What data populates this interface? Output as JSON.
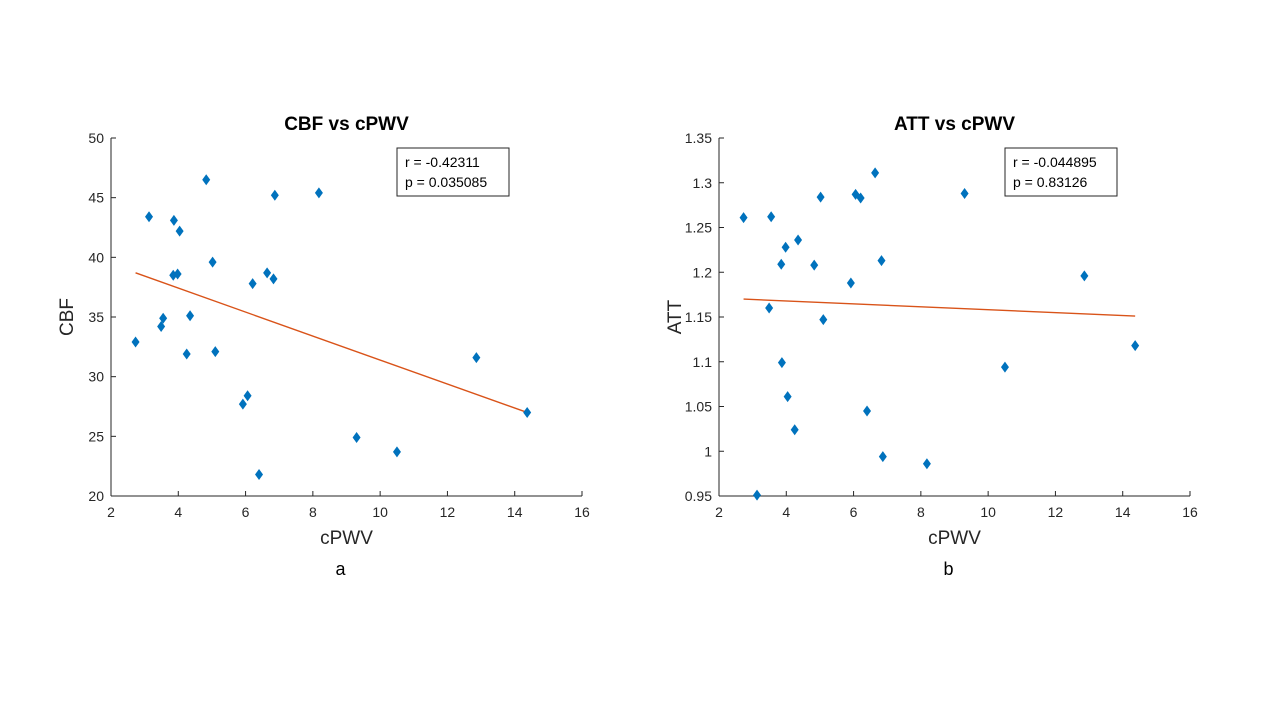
{
  "chart_data": [
    {
      "type": "scatter",
      "title": "CBF vs cPWV",
      "xlabel": "cPWV",
      "ylabel": "CBF",
      "panel_label": "a",
      "xlim": [
        2,
        16
      ],
      "ylim": [
        20,
        50
      ],
      "xticks": [
        2,
        4,
        6,
        8,
        10,
        12,
        14,
        16
      ],
      "yticks": [
        20,
        25,
        30,
        35,
        40,
        45,
        50
      ],
      "marker": "diamond",
      "marker_color": "#0072BD",
      "fit_color": "#D95319",
      "stats": [
        "r = -0.42311",
        "p = 0.035085"
      ],
      "fit_line": {
        "x": [
          2.73,
          14.37
        ],
        "y": [
          38.7,
          27.0
        ]
      },
      "series": [
        {
          "name": "data",
          "x": [
            2.73,
            3.13,
            3.49,
            3.55,
            3.85,
            3.87,
            3.98,
            4.04,
            4.25,
            4.35,
            4.83,
            5.02,
            5.1,
            5.92,
            6.06,
            6.21,
            6.4,
            6.64,
            6.83,
            6.87,
            8.18,
            9.3,
            10.5,
            12.86,
            14.37
          ],
          "y": [
            32.9,
            43.4,
            34.2,
            34.9,
            38.5,
            43.1,
            38.6,
            42.2,
            31.9,
            35.1,
            46.5,
            39.6,
            32.1,
            27.7,
            28.4,
            37.8,
            21.8,
            38.7,
            38.2,
            45.2,
            45.4,
            24.9,
            23.7,
            31.6,
            27.0
          ]
        }
      ]
    },
    {
      "type": "scatter",
      "title": "ATT vs cPWV",
      "xlabel": "cPWV",
      "ylabel": "ATT",
      "panel_label": "b",
      "xlim": [
        2,
        16
      ],
      "ylim": [
        0.95,
        1.35
      ],
      "xticks": [
        2,
        4,
        6,
        8,
        10,
        12,
        14,
        16
      ],
      "yticks": [
        0.95,
        1,
        1.05,
        1.1,
        1.15,
        1.2,
        1.25,
        1.3,
        1.35
      ],
      "marker": "diamond",
      "marker_color": "#0072BD",
      "fit_color": "#D95319",
      "stats": [
        "r = -0.044895",
        "p = 0.83126"
      ],
      "fit_line": {
        "x": [
          2.73,
          14.37
        ],
        "y": [
          1.17,
          1.151
        ]
      },
      "series": [
        {
          "name": "data",
          "x": [
            2.73,
            3.13,
            3.49,
            3.55,
            3.85,
            3.87,
            3.98,
            4.04,
            4.25,
            4.35,
            4.83,
            5.02,
            5.1,
            5.92,
            6.06,
            6.21,
            6.4,
            6.64,
            6.83,
            6.87,
            8.18,
            9.3,
            10.5,
            12.86,
            14.37
          ],
          "y": [
            1.261,
            0.951,
            1.16,
            1.262,
            1.209,
            1.099,
            1.228,
            1.061,
            1.024,
            1.236,
            1.208,
            1.284,
            1.147,
            1.188,
            1.287,
            1.283,
            1.045,
            1.311,
            1.213,
            0.994,
            0.986,
            1.288,
            1.094,
            1.196,
            1.118
          ]
        }
      ]
    }
  ]
}
